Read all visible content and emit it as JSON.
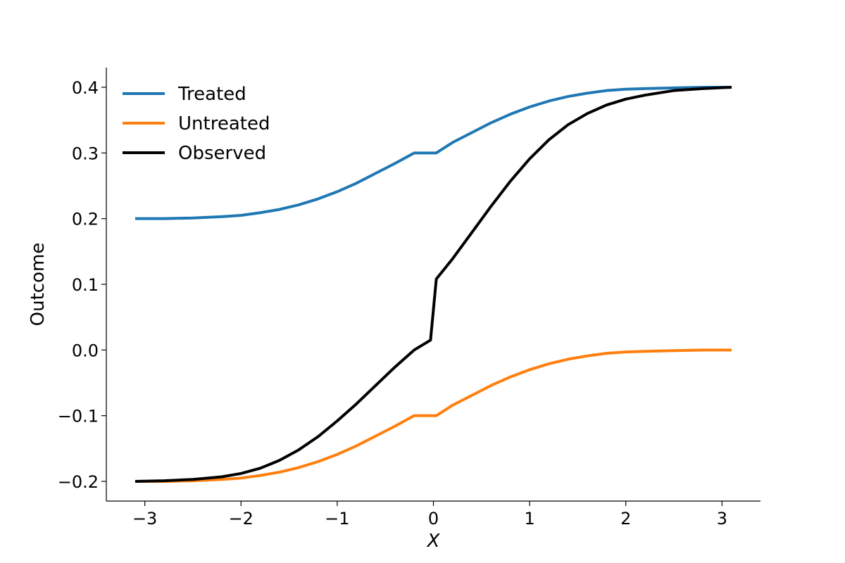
{
  "chart_data": {
    "type": "line",
    "title": "",
    "xlabel": "X",
    "ylabel": "Outcome",
    "xlim": [
      -3.4,
      3.4
    ],
    "ylim": [
      -0.23,
      0.43
    ],
    "xticks": [
      -3,
      -2,
      -1,
      0,
      1,
      2,
      3
    ],
    "xtick_labels": [
      "−3",
      "−2",
      "−1",
      "0",
      "1",
      "2",
      "3"
    ],
    "yticks": [
      -0.2,
      -0.1,
      0.0,
      0.1,
      0.2,
      0.3,
      0.4
    ],
    "ytick_labels": [
      "−0.2",
      "−0.1",
      "0.0",
      "0.1",
      "0.2",
      "0.3",
      "0.4"
    ],
    "grid": false,
    "legend_position": "top-left",
    "x": [
      -3.1,
      -2.8,
      -2.5,
      -2.2,
      -2.0,
      -1.8,
      -1.6,
      -1.4,
      -1.2,
      -1.0,
      -0.8,
      -0.6,
      -0.4,
      -0.2,
      -0.03,
      0.03,
      0.2,
      0.4,
      0.6,
      0.8,
      1.0,
      1.2,
      1.4,
      1.6,
      1.8,
      2.0,
      2.2,
      2.5,
      2.8,
      3.1
    ],
    "series": [
      {
        "name": "Treated",
        "color": "#1f77b4",
        "values": [
          0.2,
          0.2,
          0.201,
          0.203,
          0.205,
          0.209,
          0.214,
          0.221,
          0.23,
          0.241,
          0.254,
          0.269,
          0.284,
          0.3,
          0.3,
          0.3,
          0.316,
          0.331,
          0.346,
          0.359,
          0.37,
          0.379,
          0.386,
          0.391,
          0.395,
          0.397,
          0.398,
          0.399,
          0.4,
          0.4
        ]
      },
      {
        "name": "Untreated",
        "color": "#ff7f0e",
        "values": [
          -0.2,
          -0.2,
          -0.199,
          -0.197,
          -0.195,
          -0.191,
          -0.186,
          -0.179,
          -0.17,
          -0.159,
          -0.146,
          -0.131,
          -0.116,
          -0.1,
          -0.1,
          -0.1,
          -0.084,
          -0.069,
          -0.054,
          -0.041,
          -0.03,
          -0.021,
          -0.014,
          -0.009,
          -0.005,
          -0.003,
          -0.002,
          -0.001,
          0.0,
          0.0
        ]
      },
      {
        "name": "Observed",
        "color": "#000000",
        "values": [
          -0.2,
          -0.199,
          -0.197,
          -0.193,
          -0.188,
          -0.18,
          -0.168,
          -0.152,
          -0.132,
          -0.108,
          -0.082,
          -0.054,
          -0.026,
          0.0,
          0.015,
          0.108,
          0.139,
          0.179,
          0.219,
          0.257,
          0.291,
          0.32,
          0.343,
          0.36,
          0.373,
          0.382,
          0.388,
          0.395,
          0.398,
          0.4
        ]
      }
    ]
  }
}
